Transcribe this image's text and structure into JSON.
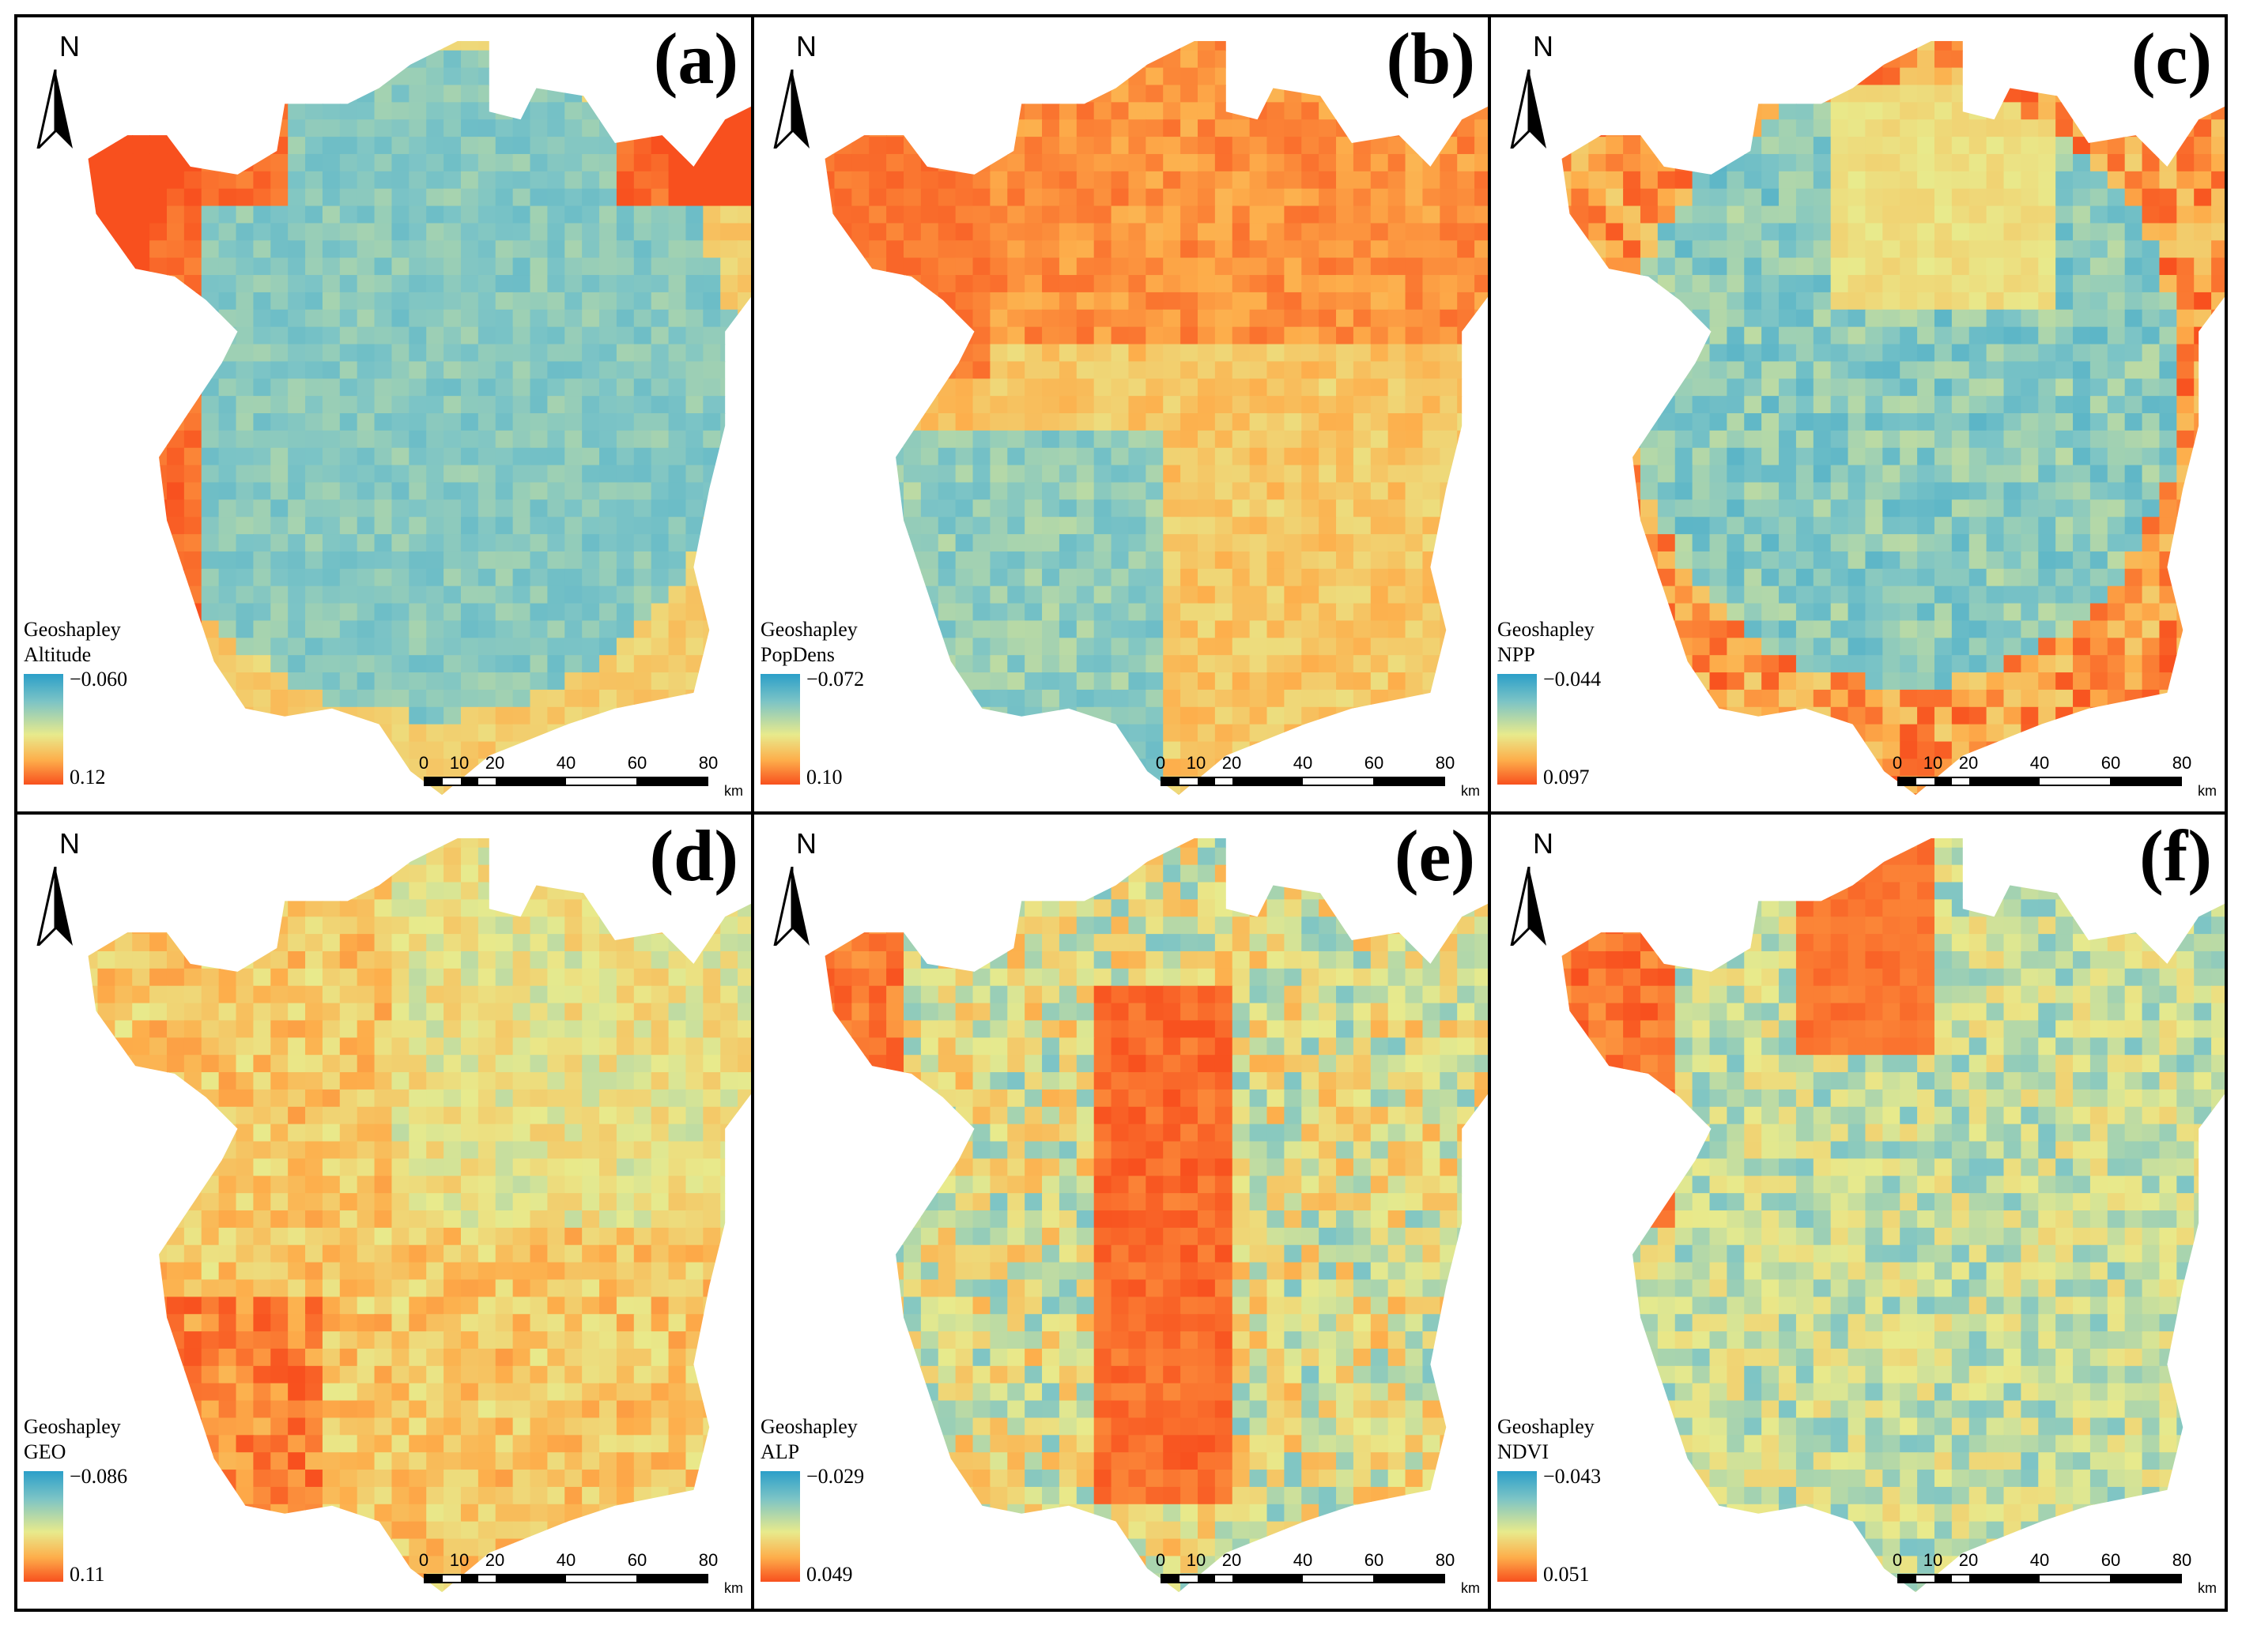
{
  "figure": {
    "panels": [
      {
        "letter": "(a)",
        "legend_title": "Geoshapley",
        "variable": "Altitude",
        "max_label": "−0.060",
        "min_label": "0.12",
        "dominant": "blue",
        "hot_regions": "edges"
      },
      {
        "letter": "(b)",
        "legend_title": "Geoshapley",
        "variable": "PopDens",
        "max_label": "−0.072",
        "min_label": "0.10",
        "dominant": "orange",
        "hot_regions": "north"
      },
      {
        "letter": "(c)",
        "legend_title": "Geoshapley",
        "variable": "NPP",
        "max_label": "−0.044",
        "min_label": "0.097",
        "dominant": "blue",
        "hot_regions": "edges"
      },
      {
        "letter": "(d)",
        "legend_title": "Geoshapley",
        "variable": "GEO",
        "max_label": "−0.086",
        "min_label": "0.11",
        "dominant": "yellow",
        "hot_regions": "scattered"
      },
      {
        "letter": "(e)",
        "legend_title": "Geoshapley",
        "variable": "ALP",
        "max_label": "−0.029",
        "min_label": "0.049",
        "dominant": "mixed",
        "hot_regions": "center"
      },
      {
        "letter": "(f)",
        "legend_title": "Geoshapley",
        "variable": "NDVI",
        "max_label": "−0.043",
        "min_label": "0.051",
        "dominant": "blue",
        "hot_regions": "west"
      }
    ],
    "north_label": "N",
    "scalebar": {
      "ticks": [
        "0",
        "10",
        "20",
        "40",
        "60",
        "80"
      ],
      "unit": "km"
    },
    "colors": {
      "low": "#2b9fc9",
      "mid": "#e8ea8c",
      "high": "#f8501e"
    }
  }
}
